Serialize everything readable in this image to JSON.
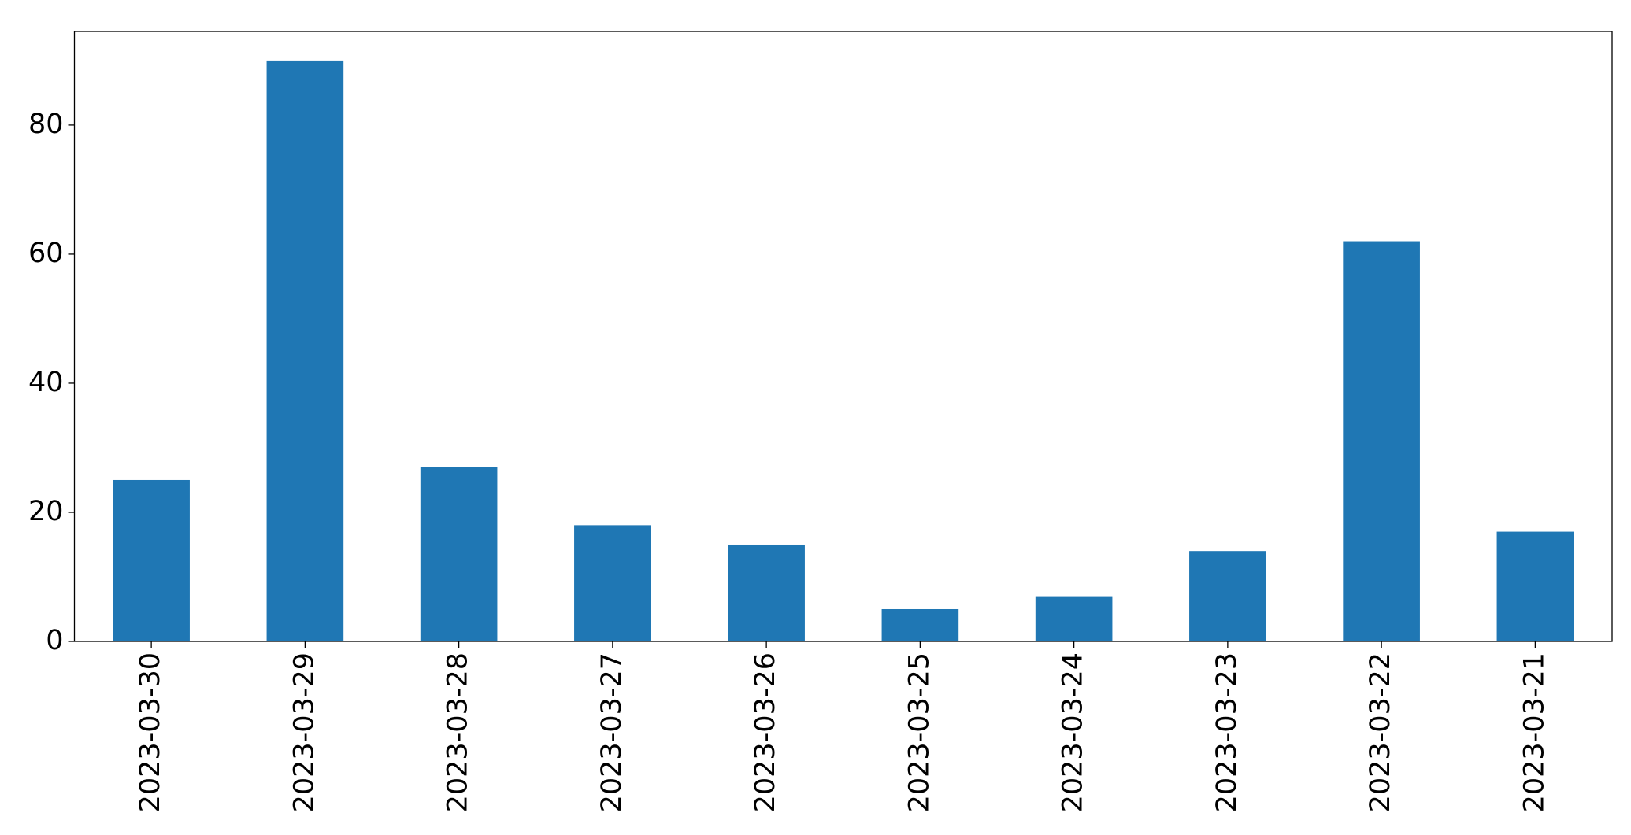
{
  "chart_data": {
    "type": "bar",
    "categories": [
      "2023-03-30",
      "2023-03-29",
      "2023-03-28",
      "2023-03-27",
      "2023-03-26",
      "2023-03-25",
      "2023-03-24",
      "2023-03-23",
      "2023-03-22",
      "2023-03-21"
    ],
    "values": [
      25,
      90,
      27,
      18,
      15,
      5,
      7,
      14,
      62,
      17
    ],
    "color": "#1f77b4",
    "ylim": [
      0,
      94.5
    ],
    "yticks": [
      0,
      20,
      40,
      60,
      80
    ],
    "grid": false
  }
}
